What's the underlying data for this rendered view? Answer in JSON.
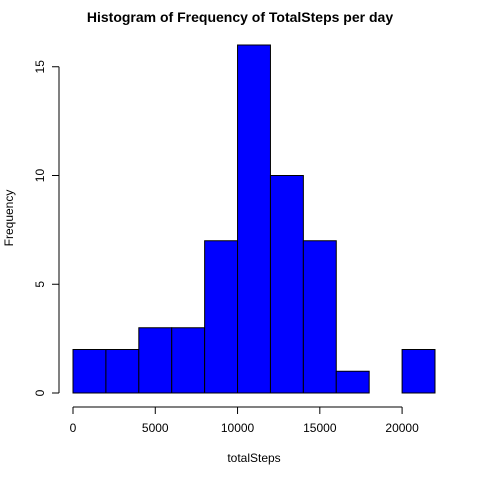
{
  "chart_data": {
    "type": "bar",
    "title": "Histogram of Frequency of TotalSteps per day",
    "xlabel": "totalSteps",
    "ylabel": "Frequency",
    "bins": [
      {
        "start": 0,
        "end": 2000,
        "count": 2
      },
      {
        "start": 2000,
        "end": 4000,
        "count": 2
      },
      {
        "start": 4000,
        "end": 6000,
        "count": 3
      },
      {
        "start": 6000,
        "end": 8000,
        "count": 3
      },
      {
        "start": 8000,
        "end": 10000,
        "count": 7
      },
      {
        "start": 10000,
        "end": 12000,
        "count": 16
      },
      {
        "start": 12000,
        "end": 14000,
        "count": 10
      },
      {
        "start": 14000,
        "end": 16000,
        "count": 7
      },
      {
        "start": 16000,
        "end": 18000,
        "count": 1
      },
      {
        "start": 18000,
        "end": 20000,
        "count": 0
      },
      {
        "start": 20000,
        "end": 22000,
        "count": 2
      }
    ],
    "xlim": [
      0,
      22000
    ],
    "ylim": [
      0,
      16
    ],
    "xticks": [
      0,
      5000,
      10000,
      15000,
      20000
    ],
    "yticks": [
      0,
      5,
      10,
      15
    ],
    "bar_color": "#0000ff",
    "border_color": "#000000",
    "grid": false,
    "legend": "none"
  }
}
